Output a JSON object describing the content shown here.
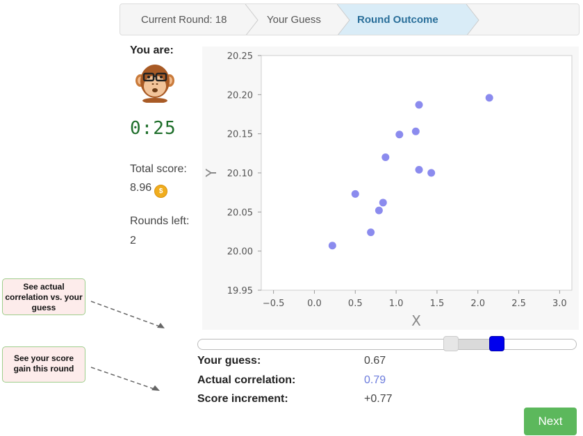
{
  "breadcrumb": {
    "current_round": "Current Round: 18",
    "your_guess": "Your Guess",
    "round_outcome": "Round Outcome"
  },
  "player": {
    "label": "You are:",
    "avatar": "monkey-with-glasses-icon",
    "timer": "0:25"
  },
  "score": {
    "total_label": "Total score:",
    "total_value": "8.96",
    "rounds_left_label": "Rounds left:",
    "rounds_left_value": "2"
  },
  "chart_data": {
    "type": "scatter",
    "xlabel": "X",
    "ylabel": "Y",
    "xlim": [
      -0.65,
      3.15
    ],
    "ylim": [
      19.95,
      20.25
    ],
    "xticks": [
      -0.5,
      0.0,
      0.5,
      1.0,
      1.5,
      2.0,
      2.5,
      3.0
    ],
    "xtick_labels": [
      "−0.5",
      "0.0",
      "0.5",
      "1.0",
      "1.5",
      "2.0",
      "2.5",
      "3.0"
    ],
    "yticks": [
      19.95,
      20.0,
      20.05,
      20.1,
      20.15,
      20.2,
      20.25
    ],
    "ytick_labels": [
      "19.95",
      "20.00",
      "20.05",
      "20.10",
      "20.15",
      "20.20",
      "20.25"
    ],
    "point_color": "#8b8bee",
    "points": [
      [
        0.22,
        20.007
      ],
      [
        0.5,
        20.073
      ],
      [
        0.69,
        20.024
      ],
      [
        0.79,
        20.052
      ],
      [
        0.84,
        20.062
      ],
      [
        0.87,
        20.12
      ],
      [
        1.04,
        20.149
      ],
      [
        1.24,
        20.153
      ],
      [
        1.28,
        20.187
      ],
      [
        1.28,
        20.104
      ],
      [
        1.43,
        20.1
      ],
      [
        2.14,
        20.196
      ]
    ]
  },
  "slider": {
    "guess_value": 0.67,
    "actual_value": 0.79,
    "guess_color": "#0000ee"
  },
  "results": {
    "guess_label": "Your guess:",
    "guess_value": "0.67",
    "actual_label": "Actual correlation:",
    "actual_value": "0.79",
    "increment_label": "Score increment:",
    "increment_value": "+0.77"
  },
  "next_button": "Next",
  "annotations": {
    "correlation_note": "See actual correlation vs. your guess",
    "score_note": "See your score gain this round"
  }
}
